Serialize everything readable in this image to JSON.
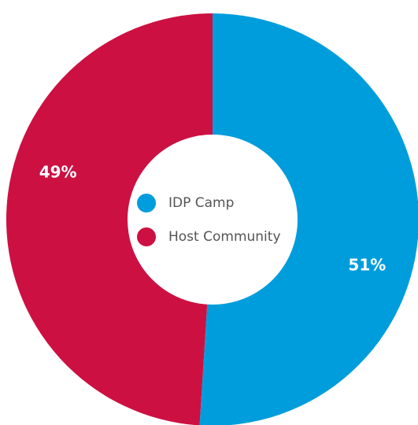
{
  "chart_data": {
    "type": "donut",
    "categories": [
      "IDP Camp",
      "Host Community"
    ],
    "values": [
      51,
      49
    ],
    "value_labels": [
      "51%",
      "49%"
    ],
    "colors": [
      "#009ddc",
      "#cc1042"
    ]
  }
}
